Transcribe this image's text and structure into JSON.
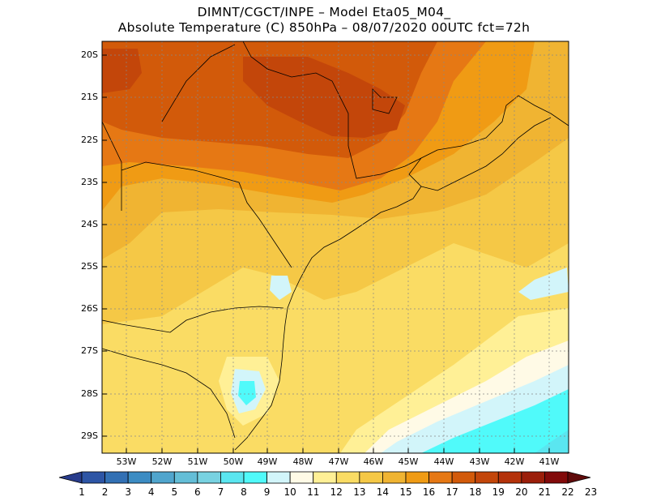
{
  "title_line1": "DIMNT/CGCT/INPE –  Model Eta05_M04_",
  "title_line2": "Absolute Temperature (C) 850hPa –  08/07/2020 00UTC fct=72h",
  "map": {
    "lat_labels": [
      "20S",
      "21S",
      "22S",
      "23S",
      "24S",
      "25S",
      "26S",
      "27S",
      "28S",
      "29S"
    ],
    "lon_labels": [
      "53W",
      "52W",
      "51W",
      "50W",
      "49W",
      "48W",
      "47W",
      "46W",
      "45W",
      "44W",
      "43W",
      "42W",
      "41W"
    ]
  },
  "colorbar": {
    "labels": [
      "1",
      "2",
      "3",
      "4",
      "5",
      "6",
      "7",
      "8",
      "9",
      "10",
      "11",
      "12",
      "13",
      "14",
      "15",
      "16",
      "17",
      "18",
      "19",
      "20",
      "21",
      "22",
      "23"
    ],
    "colors": [
      "#283c8c",
      "#2d55a5",
      "#3270b4",
      "#3c8cc3",
      "#50a5cd",
      "#64bed7",
      "#78d2e1",
      "#5ae6f0",
      "#50fafa",
      "#d2f5fa",
      "#fffae6",
      "#fff096",
      "#fadc64",
      "#f5c846",
      "#f0b432",
      "#f09b14",
      "#e67814",
      "#d25a0a",
      "#c3460a",
      "#b4320a",
      "#9b1e0a",
      "#820a0a",
      "#600a0a"
    ]
  },
  "palette": {
    "grid": "#888888",
    "coast": "#000000"
  }
}
